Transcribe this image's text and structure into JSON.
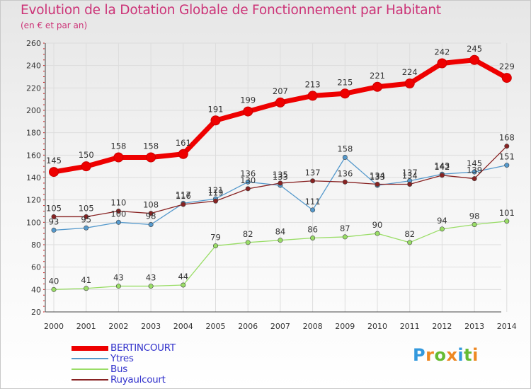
{
  "header": {
    "title": "Evolution de la Dotation Globale de Fonctionnement par Habitant",
    "subtitle": "(en € et par an)"
  },
  "logo": {
    "text": "Proxiti",
    "letters": [
      {
        "ch": "P",
        "color": "#3399dd"
      },
      {
        "ch": "r",
        "color": "#ee8822"
      },
      {
        "ch": "o",
        "color": "#66bb33"
      },
      {
        "ch": "x",
        "color": "#ee8822"
      },
      {
        "ch": "i",
        "color": "#3399dd"
      },
      {
        "ch": "t",
        "color": "#66bb33"
      },
      {
        "ch": "i",
        "color": "#ee8822"
      }
    ]
  },
  "chart_data": {
    "type": "line",
    "title": "Evolution de la Dotation Globale de Fonctionnement par Habitant",
    "subtitle": "(en € et par an)",
    "xlabel": "",
    "ylabel": "",
    "x": [
      "2000",
      "2001",
      "2002",
      "2003",
      "2004",
      "2005",
      "2006",
      "2007",
      "2008",
      "2009",
      "2010",
      "2011",
      "2012",
      "2013",
      "2014"
    ],
    "ylim": [
      20,
      260
    ],
    "yticks": [
      20,
      40,
      60,
      80,
      100,
      120,
      140,
      160,
      180,
      200,
      220,
      240,
      260
    ],
    "grid": true,
    "legend_position": "bottom-left",
    "series": [
      {
        "name": "BERTINCOURT",
        "color": "#ee0000",
        "values": [
          145,
          150,
          158,
          158,
          161,
          191,
          199,
          207,
          213,
          215,
          221,
          224,
          242,
          245,
          229
        ],
        "labels": [
          "145",
          "150",
          "158",
          "158",
          "161",
          "191",
          "199",
          "207",
          "213",
          "215",
          "221",
          "224",
          "242",
          "245",
          "229"
        ]
      },
      {
        "name": "Ytres",
        "color": "#5599cc",
        "values": [
          93,
          95,
          100,
          98,
          117,
          121,
          136,
          133,
          111,
          158,
          133,
          137,
          143,
          145,
          151
        ],
        "labels": [
          "93",
          "95",
          "100",
          "98",
          "117",
          "121",
          "136",
          "133",
          "111",
          "158",
          "133",
          "137",
          "143",
          "145",
          "151"
        ]
      },
      {
        "name": "Bus",
        "color": "#99dd66",
        "values": [
          40,
          41,
          43,
          43,
          44,
          79,
          82,
          84,
          86,
          87,
          90,
          82,
          94,
          98,
          101
        ],
        "labels": [
          "40",
          "41",
          "43",
          "43",
          "44",
          "79",
          "82",
          "84",
          "86",
          "87",
          "90",
          "82",
          "94",
          "98",
          "101"
        ]
      },
      {
        "name": "Ruyaulcourt",
        "color": "#882222",
        "values": [
          105,
          105,
          110,
          108,
          116,
          119,
          130,
          135,
          137,
          136,
          134,
          134,
          142,
          139,
          168
        ],
        "labels": [
          "105",
          "105",
          "110",
          "108",
          "116",
          "119",
          "130",
          "135",
          "137",
          "136",
          "134",
          "134",
          "142",
          "139",
          "168"
        ]
      }
    ]
  }
}
